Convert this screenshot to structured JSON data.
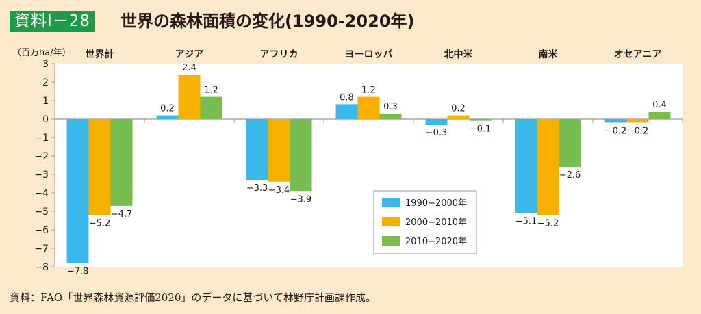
{
  "header": {
    "badge": "資料Ⅰ－28",
    "title": "世界の森林面積の変化(1990-2020年)"
  },
  "unit_label": "（百万ha/年）",
  "source": "資料：FAO「世界森林資源評価2020」のデータに基づいて林野庁計画課作成。",
  "chart_data": {
    "type": "bar",
    "title": "世界の森林面積の変化(1990-2020年)",
    "ylabel": "百万ha/年",
    "xlabel": "",
    "ylim": [
      -8,
      3
    ],
    "yticks": [
      3,
      2,
      1,
      0,
      -1,
      -2,
      -3,
      -4,
      -5,
      -6,
      -7,
      -8
    ],
    "ytick_labels": [
      "3",
      "2",
      "1",
      "0",
      "−1",
      "−2",
      "−3",
      "−4",
      "−5",
      "−6",
      "−7",
      "−8"
    ],
    "categories": [
      "世界計",
      "アジア",
      "アフリカ",
      "ヨーロッパ",
      "北中米",
      "南米",
      "オセアニア"
    ],
    "series": [
      {
        "name": "1990−2000年",
        "color": "#3ab8ea",
        "values": [
          -7.8,
          0.2,
          -3.3,
          0.8,
          -0.3,
          -5.1,
          -0.2
        ],
        "labels": [
          "−7.8",
          "0.2",
          "−3.3",
          "0.8",
          "−0.3",
          "−5.1",
          "−0.2"
        ]
      },
      {
        "name": "2000−2010年",
        "color": "#f5b000",
        "values": [
          -5.2,
          2.4,
          -3.4,
          1.2,
          0.2,
          -5.2,
          -0.2
        ],
        "labels": [
          "−5.2",
          "2.4",
          "−3.4",
          "1.2",
          "0.2",
          "−5.2",
          "−0.2"
        ]
      },
      {
        "name": "2010−2020年",
        "color": "#77bd52",
        "values": [
          -4.7,
          1.2,
          -3.9,
          0.3,
          -0.1,
          -2.6,
          0.4
        ],
        "labels": [
          "−4.7",
          "1.2",
          "−3.9",
          "0.3",
          "−0.1",
          "−2.6",
          "0.4"
        ]
      }
    ],
    "legend": "bottom-center",
    "grid": false
  }
}
